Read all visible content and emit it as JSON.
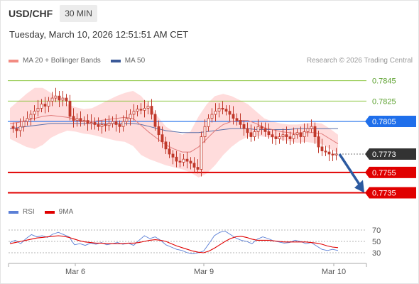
{
  "header": {
    "symbol": "USD/CHF",
    "timeframe": "30 MIN",
    "timestamp": "Tuesday, March 10, 2026 12:51:51 AM CET",
    "credit": "Research © 2026 Trading Central"
  },
  "legend_main": [
    {
      "name": "MA 20 + Bollinger Bands",
      "color": "#f28b82"
    },
    {
      "name": "MA 50",
      "color": "#3b5998"
    }
  ],
  "legend_rsi": [
    {
      "name": "RSI",
      "color": "#5b7fd6"
    },
    {
      "name": "9MA",
      "color": "#e00000"
    }
  ],
  "colors": {
    "resistance": "#8cc63f",
    "pivot": "#1f6feb",
    "support": "#e00000",
    "current": "#333333",
    "candle": "#c0392b",
    "arrow": "#2c5aa0",
    "band": "#ffd6d6"
  },
  "chart_data": [
    {
      "type": "candlestick",
      "title": "USD/CHF",
      "x_labels": [
        "Mar 6",
        "Mar 9",
        "Mar 10"
      ],
      "ylim": [
        0.7727,
        0.7858
      ],
      "price_levels": [
        {
          "value": 0.7845,
          "label": "0.7845",
          "kind": "resistance"
        },
        {
          "value": 0.7825,
          "label": "0.7825",
          "kind": "resistance"
        },
        {
          "value": 0.7805,
          "label": "0.7805",
          "kind": "pivot"
        },
        {
          "value": 0.7773,
          "label": "0.7773",
          "kind": "current"
        },
        {
          "value": 0.7755,
          "label": "0.7755",
          "kind": "support"
        },
        {
          "value": 0.7735,
          "label": "0.7735",
          "kind": "support"
        }
      ],
      "close_series": [
        0.7798,
        0.7796,
        0.78,
        0.7805,
        0.7808,
        0.7812,
        0.7815,
        0.7818,
        0.7822,
        0.782,
        0.7825,
        0.7828,
        0.783,
        0.7826,
        0.7828,
        0.7825,
        0.781,
        0.7806,
        0.7808,
        0.7805,
        0.7806,
        0.7803,
        0.7804,
        0.7802,
        0.78,
        0.7802,
        0.7801,
        0.7803,
        0.7805,
        0.7802,
        0.78,
        0.7805,
        0.7808,
        0.7812,
        0.7815,
        0.7817,
        0.7816,
        0.7818,
        0.782,
        0.7812,
        0.78,
        0.7792,
        0.7785,
        0.7778,
        0.7773,
        0.777,
        0.7766,
        0.7765,
        0.7768,
        0.7766,
        0.7764,
        0.776,
        0.7758,
        0.779,
        0.78,
        0.7808,
        0.7812,
        0.7815,
        0.7818,
        0.7817,
        0.7815,
        0.7812,
        0.7808,
        0.7806,
        0.7802,
        0.7798,
        0.7794,
        0.779,
        0.7795,
        0.78,
        0.7798,
        0.7795,
        0.7792,
        0.779,
        0.7788,
        0.779,
        0.7792,
        0.779,
        0.7788,
        0.7792,
        0.7794,
        0.779,
        0.7795,
        0.7798,
        0.78,
        0.779,
        0.778,
        0.7776,
        0.7775,
        0.7773,
        0.7772,
        0.7773
      ],
      "ma20": [
        0.7803,
        0.7804,
        0.7806,
        0.7808,
        0.781,
        0.7811,
        0.781,
        0.7809,
        0.7807,
        0.7805,
        0.7805,
        0.7806,
        0.7807,
        0.7808,
        0.7809,
        0.7808,
        0.7801,
        0.7794,
        0.7788,
        0.7782,
        0.7778,
        0.7775,
        0.7775,
        0.778,
        0.7788,
        0.7796,
        0.7802,
        0.7805,
        0.7806,
        0.7806,
        0.7803,
        0.7799,
        0.7797,
        0.7795,
        0.7794,
        0.7793,
        0.7794,
        0.7794,
        0.7793,
        0.7788,
        0.7783
      ],
      "ma50": [
        0.7798,
        0.7799,
        0.78,
        0.7801,
        0.7802,
        0.7803,
        0.7803,
        0.7803,
        0.7803,
        0.7803,
        0.7803,
        0.7803,
        0.7803,
        0.7803,
        0.7803,
        0.7803,
        0.7802,
        0.78,
        0.7798,
        0.7796,
        0.7795,
        0.7794,
        0.7794,
        0.7794,
        0.7795,
        0.7796,
        0.7797,
        0.7798,
        0.7798,
        0.7798,
        0.7797,
        0.7797,
        0.7797,
        0.7797,
        0.7797,
        0.7798,
        0.7798,
        0.7798,
        0.7798,
        0.7798,
        0.7798
      ],
      "bb_upper": [
        0.7818,
        0.7825,
        0.7832,
        0.7838,
        0.7838,
        0.7833,
        0.7827,
        0.7822,
        0.7819,
        0.7817,
        0.7818,
        0.7822,
        0.7826,
        0.783,
        0.7833,
        0.7835,
        0.783,
        0.782,
        0.781,
        0.78,
        0.7795,
        0.7792,
        0.7795,
        0.781,
        0.7822,
        0.783,
        0.7832,
        0.783,
        0.7826,
        0.7822,
        0.7815,
        0.7808,
        0.7805,
        0.7803,
        0.7802,
        0.7802,
        0.7803,
        0.7804,
        0.7803,
        0.7798,
        0.7792
      ],
      "bb_lower": [
        0.7788,
        0.7784,
        0.778,
        0.7778,
        0.7782,
        0.7789,
        0.7793,
        0.7796,
        0.7795,
        0.7793,
        0.7792,
        0.779,
        0.7788,
        0.7786,
        0.7785,
        0.7781,
        0.7772,
        0.7768,
        0.7765,
        0.7762,
        0.776,
        0.7758,
        0.7755,
        0.775,
        0.7754,
        0.7762,
        0.7772,
        0.778,
        0.7786,
        0.779,
        0.7791,
        0.779,
        0.7789,
        0.7787,
        0.7786,
        0.7784,
        0.7785,
        0.7784,
        0.7783,
        0.7778,
        0.7774
      ],
      "forecast_arrow": {
        "from": 0.7773,
        "to": 0.7735
      }
    },
    {
      "type": "line",
      "title": "RSI",
      "yticks": [
        30,
        50,
        70
      ],
      "ylim": [
        20,
        80
      ],
      "series": [
        {
          "name": "RSI",
          "values": [
            48,
            52,
            46,
            55,
            62,
            58,
            60,
            57,
            63,
            66,
            62,
            58,
            44,
            46,
            43,
            47,
            45,
            48,
            44,
            46,
            48,
            45,
            47,
            43,
            52,
            60,
            55,
            58,
            52,
            44,
            40,
            36,
            34,
            30,
            28,
            30,
            33,
            46,
            60,
            66,
            68,
            62,
            56,
            52,
            50,
            46,
            54,
            58,
            55,
            51,
            49,
            47,
            48,
            52,
            50,
            46,
            48,
            42,
            36,
            34,
            36,
            34
          ]
        },
        {
          "name": "9MA",
          "values": [
            46,
            48,
            50,
            52,
            54,
            56,
            57,
            58,
            59,
            60,
            59,
            57,
            54,
            51,
            49,
            48,
            47,
            47,
            46,
            46,
            46,
            46,
            47,
            47,
            48,
            50,
            52,
            53,
            52,
            50,
            46,
            42,
            39,
            36,
            33,
            31,
            30,
            33,
            38,
            44,
            50,
            55,
            58,
            59,
            57,
            54,
            52,
            52,
            52,
            51,
            50,
            49,
            49,
            49,
            49,
            49,
            48,
            47,
            45,
            42,
            40,
            39
          ]
        }
      ]
    }
  ]
}
